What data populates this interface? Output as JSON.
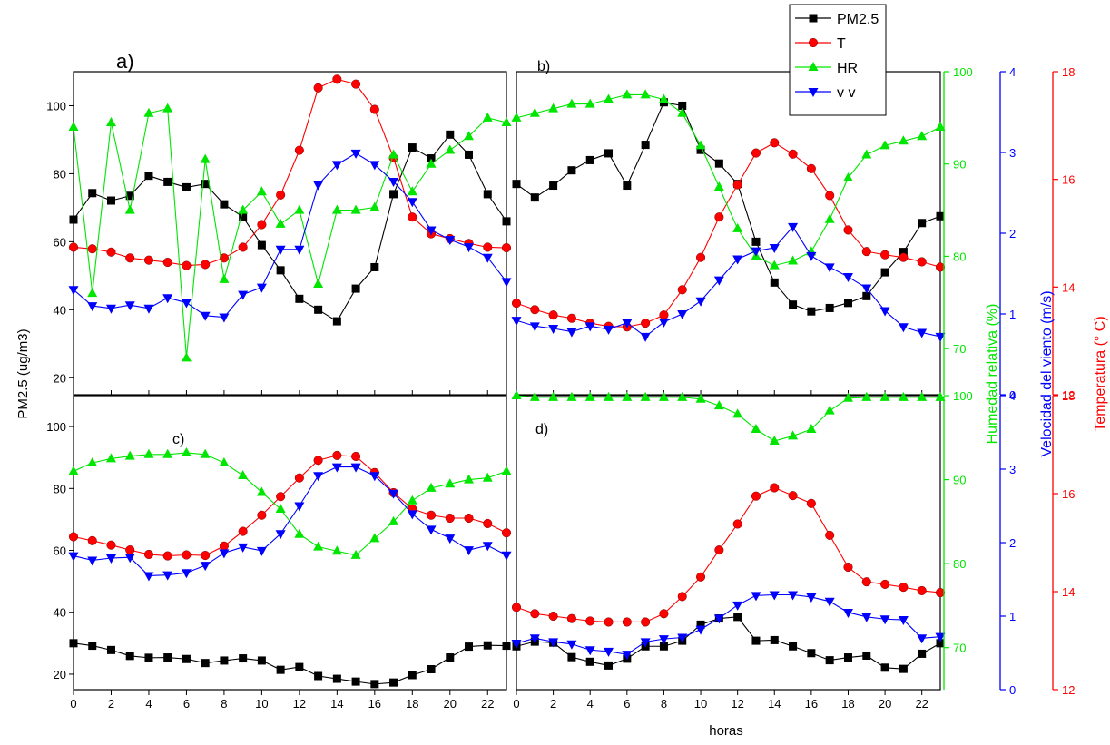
{
  "colors": {
    "pm25": "#000000",
    "t": "#ff0000",
    "hr": "#00e600",
    "vv": "#0000ff",
    "hr_axis": "#00e600",
    "vv_axis": "#0000ff",
    "t_axis": "#ff0000"
  },
  "axes": {
    "x_label": "horas",
    "x_ticks": [
      "0",
      "2",
      "4",
      "6",
      "8",
      "10",
      "12",
      "14",
      "16",
      "18",
      "20",
      "22"
    ],
    "pm25_label": "PM2.5 (ug/m3)",
    "pm25_ticks": [
      "20",
      "40",
      "60",
      "80",
      "100"
    ],
    "hr_label": "Humedad relativa (%)",
    "hr_ticks": [
      "70",
      "80",
      "90",
      "100"
    ],
    "vv_label": "Velocidad del viento (m/s)",
    "vv_ticks": [
      "0",
      "1",
      "2",
      "3",
      "4"
    ],
    "t_label": "Temperatura (° C)",
    "t_ticks": [
      "12",
      "14",
      "16",
      "18"
    ]
  },
  "legend": [
    "PM2.5",
    "T",
    "HR",
    "v v"
  ],
  "chart_data": [
    {
      "type": "line",
      "panel_label": "a)",
      "x": [
        0,
        1,
        2,
        3,
        4,
        5,
        6,
        7,
        8,
        9,
        10,
        11,
        12,
        13,
        14,
        15,
        16,
        17,
        18,
        19,
        20,
        21,
        22,
        23
      ],
      "xlim": [
        0,
        23
      ],
      "x_ticks": [
        0,
        2,
        4,
        6,
        8,
        10,
        12,
        14,
        16,
        18,
        20,
        22
      ],
      "ylim": [
        15,
        110
      ],
      "y_ticks": [
        20,
        40,
        60,
        80,
        100
      ],
      "series": [
        {
          "name": "PM2.5",
          "axis": "pm25",
          "values": [
            66.5,
            74.3,
            72.1,
            73.5,
            79.4,
            77.6,
            76.0,
            77.0,
            71.0,
            67.3,
            59.0,
            51.6,
            43.2,
            40.0,
            36.6,
            46.2,
            52.5,
            74.0,
            87.7,
            84.5,
            91.5,
            85.6,
            74.0,
            66.0
          ]
        },
        {
          "name": "T",
          "axis": "t",
          "values": [
            14.74,
            14.71,
            14.65,
            14.54,
            14.5,
            14.46,
            14.4,
            14.42,
            14.54,
            14.74,
            15.16,
            15.71,
            16.54,
            17.7,
            17.86,
            17.77,
            17.3,
            16.4,
            15.3,
            14.99,
            14.9,
            14.81,
            14.74,
            14.73
          ]
        },
        {
          "name": "HR",
          "axis": "hr",
          "values": [
            94,
            76,
            94.5,
            85,
            95.5,
            96,
            69,
            90.5,
            77.5,
            85,
            87,
            83.5,
            85,
            77,
            85,
            85,
            85.3,
            91,
            87,
            90,
            91.5,
            93,
            95,
            94.5
          ]
        },
        {
          "name": "v v",
          "axis": "vv",
          "values": [
            1.3,
            1.1,
            1.07,
            1.11,
            1.07,
            1.2,
            1.14,
            0.98,
            0.96,
            1.24,
            1.33,
            1.8,
            1.8,
            2.6,
            2.85,
            2.99,
            2.85,
            2.64,
            2.39,
            2.04,
            1.92,
            1.83,
            1.7,
            1.4
          ]
        }
      ]
    },
    {
      "type": "line",
      "panel_label": "b)",
      "x": [
        0,
        1,
        2,
        3,
        4,
        5,
        6,
        7,
        8,
        9,
        10,
        11,
        12,
        13,
        14,
        15,
        16,
        17,
        18,
        19,
        20,
        21,
        22,
        23
      ],
      "xlim": [
        0,
        23
      ],
      "x_ticks": [
        0,
        2,
        4,
        6,
        8,
        10,
        12,
        14,
        16,
        18,
        20,
        22
      ],
      "ylim": [
        15,
        110
      ],
      "y_ticks": [],
      "series": [
        {
          "name": "PM2.5",
          "axis": "pm25",
          "values": [
            77,
            73,
            76.5,
            81,
            84,
            86,
            76.5,
            88.5,
            101,
            100,
            87,
            83,
            77,
            60,
            48,
            41.5,
            39.5,
            40.5,
            42,
            44,
            51,
            57,
            65.5,
            67.5
          ]
        },
        {
          "name": "T",
          "axis": "t",
          "values": [
            13.7,
            13.58,
            13.48,
            13.42,
            13.33,
            13.27,
            13.26,
            13.33,
            13.48,
            13.95,
            14.55,
            15.3,
            15.9,
            16.49,
            16.68,
            16.47,
            16.2,
            15.7,
            15.06,
            14.66,
            14.6,
            14.55,
            14.47,
            14.37
          ]
        },
        {
          "name": "HR",
          "axis": "hr",
          "values": [
            95,
            95.5,
            96,
            96.5,
            96.5,
            97,
            97.5,
            97.5,
            97,
            95.5,
            92,
            87.5,
            83,
            80,
            79,
            79.5,
            80.5,
            84,
            88.5,
            91,
            92,
            92.5,
            93,
            94
          ]
        },
        {
          "name": "v v",
          "axis": "vv",
          "values": [
            0.92,
            0.85,
            0.82,
            0.78,
            0.85,
            0.81,
            0.89,
            0.72,
            0.9,
            1.0,
            1.16,
            1.42,
            1.68,
            1.78,
            1.82,
            2.08,
            1.72,
            1.58,
            1.46,
            1.32,
            1.04,
            0.84,
            0.77,
            0.72
          ]
        }
      ]
    },
    {
      "type": "line",
      "panel_label": "c)",
      "x": [
        0,
        1,
        2,
        3,
        4,
        5,
        6,
        7,
        8,
        9,
        10,
        11,
        12,
        13,
        14,
        15,
        16,
        17,
        18,
        19,
        20,
        21,
        22,
        23
      ],
      "xlim": [
        0,
        23
      ],
      "x_ticks": [
        0,
        2,
        4,
        6,
        8,
        10,
        12,
        14,
        16,
        18,
        20,
        22
      ],
      "ylim": [
        15,
        110
      ],
      "y_ticks": [
        20,
        40,
        60,
        80,
        100
      ],
      "series": [
        {
          "name": "PM2.5",
          "axis": "pm25",
          "values": [
            30,
            29.2,
            27.8,
            25.9,
            25.3,
            25.4,
            24.9,
            23.6,
            24.4,
            25.1,
            24.4,
            21.4,
            22.3,
            19.4,
            18.5,
            17.6,
            16.8,
            17.3,
            19.7,
            21.6,
            25.4,
            28.9,
            29.3,
            29.2
          ]
        },
        {
          "name": "T",
          "axis": "t",
          "values": [
            15.12,
            15.04,
            14.95,
            14.85,
            14.76,
            14.73,
            14.75,
            14.74,
            14.93,
            15.23,
            15.56,
            15.94,
            16.32,
            16.68,
            16.78,
            16.76,
            16.43,
            16.02,
            15.69,
            15.56,
            15.5,
            15.5,
            15.39,
            15.2
          ]
        },
        {
          "name": "HR",
          "axis": "hr",
          "values": [
            91,
            92,
            92.5,
            92.8,
            93,
            93,
            93.2,
            93,
            92,
            90.5,
            88.5,
            86.5,
            83.5,
            82,
            81.5,
            81,
            83,
            85,
            87.5,
            89,
            89.5,
            90,
            90.2,
            91
          ]
        },
        {
          "name": "v v",
          "axis": "vv",
          "values": [
            1.82,
            1.76,
            1.79,
            1.8,
            1.55,
            1.56,
            1.59,
            1.69,
            1.86,
            1.94,
            1.89,
            2.12,
            2.5,
            2.91,
            3.03,
            3.03,
            2.91,
            2.67,
            2.39,
            2.18,
            2.06,
            1.9,
            1.96,
            1.83
          ]
        }
      ]
    },
    {
      "type": "line",
      "panel_label": "d)",
      "x": [
        0,
        1,
        2,
        3,
        4,
        5,
        6,
        7,
        8,
        9,
        10,
        11,
        12,
        13,
        14,
        15,
        16,
        17,
        18,
        19,
        20,
        21,
        22,
        23
      ],
      "xlim": [
        0,
        23
      ],
      "x_ticks": [
        0,
        2,
        4,
        6,
        8,
        10,
        12,
        14,
        16,
        18,
        20,
        22
      ],
      "ylim": [
        15,
        110
      ],
      "y_ticks": [],
      "series": [
        {
          "name": "PM2.5",
          "axis": "pm25",
          "values": [
            29,
            30.5,
            30.2,
            25.5,
            24,
            22.8,
            25,
            29,
            29,
            30.8,
            36,
            38,
            38.5,
            30.8,
            31,
            29,
            26.8,
            24.5,
            25.4,
            26,
            22.1,
            21.7,
            26.6,
            30
          ]
        },
        {
          "name": "T",
          "axis": "t",
          "values": [
            13.68,
            13.55,
            13.5,
            13.45,
            13.4,
            13.38,
            13.38,
            13.38,
            13.55,
            13.9,
            14.3,
            14.85,
            15.38,
            15.95,
            16.12,
            15.96,
            15.8,
            15.15,
            14.5,
            14.2,
            14.15,
            14.09,
            14.02,
            13.98
          ]
        },
        {
          "name": "HR",
          "axis": "hr",
          "values": [
            100,
            99.8,
            99.8,
            99.8,
            99.8,
            99.8,
            99.8,
            99.8,
            99.8,
            99.8,
            99.6,
            98.8,
            97.8,
            96,
            94.6,
            95.2,
            96,
            98.2,
            99.7,
            99.8,
            99.8,
            99.8,
            99.8,
            99.8
          ]
        },
        {
          "name": "v v",
          "axis": "vv",
          "values": [
            0.63,
            0.7,
            0.65,
            0.62,
            0.54,
            0.52,
            0.48,
            0.65,
            0.69,
            0.71,
            0.82,
            0.97,
            1.15,
            1.28,
            1.29,
            1.29,
            1.26,
            1.2,
            1.05,
            0.99,
            0.96,
            0.95,
            0.7,
            0.72
          ]
        }
      ]
    }
  ]
}
